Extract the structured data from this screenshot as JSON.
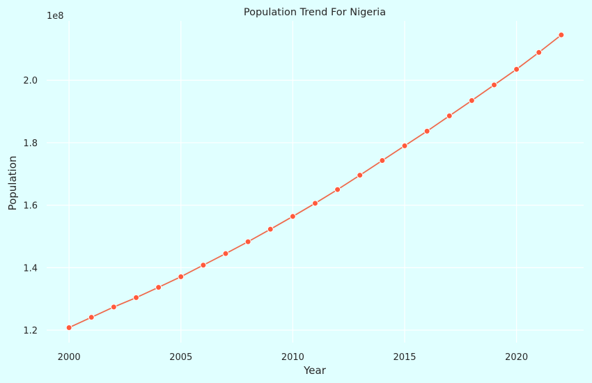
{
  "chart_data": {
    "type": "line",
    "title": "Population Trend For Nigeria",
    "xlabel": "Year",
    "ylabel": "Population",
    "offset_label": "1e8",
    "x": [
      2000,
      2001,
      2002,
      2003,
      2004,
      2005,
      2006,
      2007,
      2008,
      2009,
      2010,
      2011,
      2012,
      2013,
      2014,
      2015,
      2016,
      2017,
      2018,
      2019,
      2020,
      2021,
      2022
    ],
    "series": [
      {
        "values": [
          120800000,
          124100000,
          127400000,
          130400000,
          133700000,
          137100000,
          140800000,
          144500000,
          148300000,
          152300000,
          156400000,
          160600000,
          165000000,
          169600000,
          174300000,
          179000000,
          183700000,
          188600000,
          193500000,
          198500000,
          203500000,
          208900000,
          214500000
        ]
      }
    ],
    "xticks": [
      2000,
      2005,
      2010,
      2015,
      2020
    ],
    "xtick_labels": [
      "2000",
      "2005",
      "2010",
      "2015",
      "2020"
    ],
    "yticks": [
      120000000,
      140000000,
      160000000,
      180000000,
      200000000
    ],
    "ytick_labels": [
      "1.2",
      "1.4",
      "1.6",
      "1.8",
      "2.0"
    ],
    "xlim": [
      1999.0,
      2023.0
    ],
    "ylim": [
      116000000,
      219000000
    ],
    "grid": true,
    "colors": {
      "background": "#e0ffff",
      "line": "#ef6a4c",
      "marker": "#ff5a3c",
      "grid": "#ffffff"
    }
  }
}
